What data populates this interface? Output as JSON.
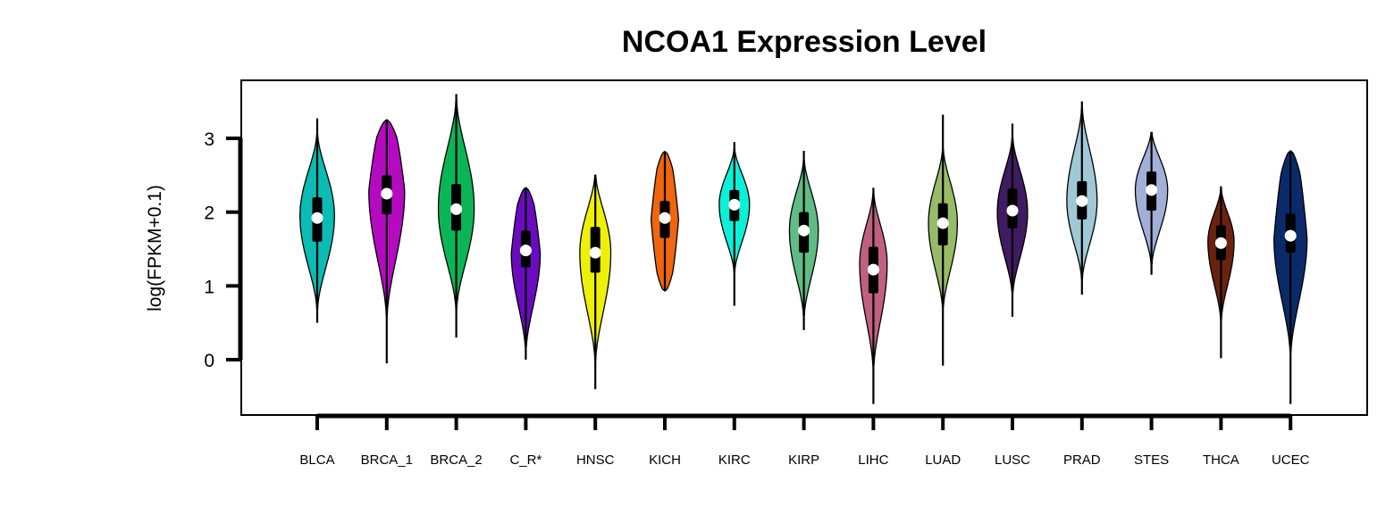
{
  "chart_data": {
    "type": "violin",
    "title": "NCOA1 Expression Level",
    "ylabel": "log(FPKM+0.1)",
    "xlabel": "",
    "ylim": [
      -0.75,
      3.8
    ],
    "yticks": [
      0,
      1,
      2,
      3
    ],
    "grid": false,
    "legend": "none",
    "categories": [
      "BLCA",
      "BRCA_1",
      "BRCA_2",
      "C_R*",
      "HNSC",
      "KICH",
      "KIRC",
      "KIRP",
      "LIHC",
      "LUAD",
      "LUSC",
      "PRAD",
      "STES",
      "THCA",
      "UCEC"
    ],
    "series": [
      {
        "category": "BLCA",
        "color": "#0bbbb4",
        "min": 0.5,
        "max": 3.27,
        "q1": 1.6,
        "median": 1.92,
        "q3": 2.2,
        "violin_top": 3.05,
        "violin_bottom": 0.7,
        "peak": 1.95,
        "width": 0.48
      },
      {
        "category": "BRCA_1",
        "color": "#b40bc0",
        "min": -0.05,
        "max": 3.25,
        "q1": 1.97,
        "median": 2.25,
        "q3": 2.5,
        "violin_top": 3.25,
        "violin_bottom": 0.6,
        "peak": 2.3,
        "width": 0.5,
        "flat_top": true
      },
      {
        "category": "BRCA_2",
        "color": "#0bb556",
        "min": 0.3,
        "max": 3.6,
        "q1": 1.75,
        "median": 2.04,
        "q3": 2.38,
        "violin_top": 3.5,
        "violin_bottom": 0.7,
        "peak": 2.05,
        "width": 0.5
      },
      {
        "category": "C_R*",
        "color": "#6a0bc0",
        "min": 0.0,
        "max": 2.33,
        "q1": 1.25,
        "median": 1.48,
        "q3": 1.75,
        "violin_top": 2.33,
        "violin_bottom": 0.15,
        "peak": 1.45,
        "width": 0.4,
        "flat_top": true
      },
      {
        "category": "HNSC",
        "color": "#eef00a",
        "min": -0.4,
        "max": 2.5,
        "q1": 1.18,
        "median": 1.45,
        "q3": 1.8,
        "violin_top": 2.5,
        "violin_bottom": 0.0,
        "peak": 1.45,
        "width": 0.43
      },
      {
        "category": "KICH",
        "color": "#f06510",
        "min": 0.93,
        "max": 2.82,
        "q1": 1.65,
        "median": 1.92,
        "q3": 2.15,
        "violin_top": 2.82,
        "violin_bottom": 0.93,
        "peak": 1.9,
        "width": 0.38,
        "flat_top": true,
        "flat_bottom": true
      },
      {
        "category": "KIRC",
        "color": "#0cf0d8",
        "min": 0.73,
        "max": 2.95,
        "q1": 1.88,
        "median": 2.1,
        "q3": 2.3,
        "violin_top": 2.85,
        "violin_bottom": 1.2,
        "peak": 2.1,
        "width": 0.42
      },
      {
        "category": "KIRP",
        "color": "#60bb85",
        "min": 0.4,
        "max": 2.83,
        "q1": 1.45,
        "median": 1.75,
        "q3": 2.0,
        "violin_top": 2.7,
        "violin_bottom": 0.6,
        "peak": 1.75,
        "width": 0.4
      },
      {
        "category": "LIHC",
        "color": "#c06080",
        "min": -0.6,
        "max": 2.33,
        "q1": 0.9,
        "median": 1.22,
        "q3": 1.53,
        "violin_top": 2.25,
        "violin_bottom": -0.1,
        "peak": 1.3,
        "width": 0.38
      },
      {
        "category": "LUAD",
        "color": "#98bb68",
        "min": -0.08,
        "max": 3.32,
        "q1": 1.55,
        "median": 1.85,
        "q3": 2.12,
        "violin_top": 2.85,
        "violin_bottom": 0.7,
        "peak": 1.85,
        "width": 0.4
      },
      {
        "category": "LUSC",
        "color": "#3f1b60",
        "min": 0.58,
        "max": 3.2,
        "q1": 1.78,
        "median": 2.02,
        "q3": 2.32,
        "violin_top": 3.0,
        "violin_bottom": 0.9,
        "peak": 2.0,
        "width": 0.42
      },
      {
        "category": "PRAD",
        "color": "#a0c8d5",
        "min": 0.88,
        "max": 3.5,
        "q1": 1.9,
        "median": 2.15,
        "q3": 2.42,
        "violin_top": 3.4,
        "violin_bottom": 1.1,
        "peak": 2.15,
        "width": 0.42
      },
      {
        "category": "STES",
        "color": "#a0b0d8",
        "min": 1.15,
        "max": 3.08,
        "q1": 2.02,
        "median": 2.3,
        "q3": 2.55,
        "violin_top": 3.08,
        "violin_bottom": 1.3,
        "peak": 2.3,
        "width": 0.45
      },
      {
        "category": "THCA",
        "color": "#6a2210",
        "min": 0.02,
        "max": 2.35,
        "q1": 1.35,
        "median": 1.58,
        "q3": 1.82,
        "violin_top": 2.3,
        "violin_bottom": 0.55,
        "peak": 1.6,
        "width": 0.36
      },
      {
        "category": "UCEC",
        "color": "#0b2a6a",
        "min": -0.6,
        "max": 2.83,
        "q1": 1.45,
        "median": 1.68,
        "q3": 1.98,
        "violin_top": 2.83,
        "violin_bottom": 0.1,
        "peak": 1.65,
        "width": 0.46,
        "flat_top": true
      }
    ]
  }
}
